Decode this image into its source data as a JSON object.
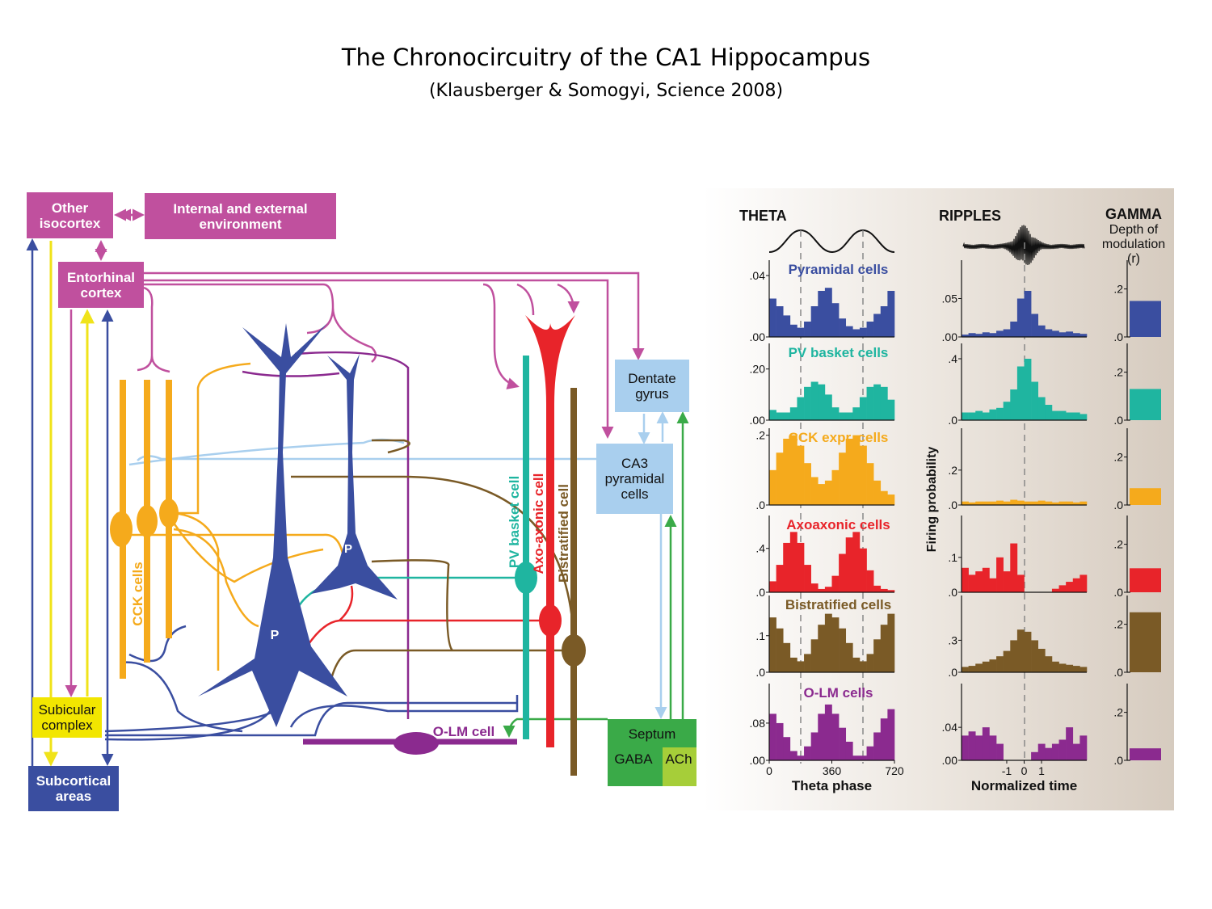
{
  "header": {
    "title": "The Chronocircuitry of the CA1 Hippocampus",
    "subtitle": "(Klausberger & Somogyi, Science 2008)"
  },
  "diagram": {
    "boxes": [
      "Other isocortex",
      "Internal and external environment",
      "Entorhinal cortex",
      "Dentate gyrus",
      "CA3 pyramidal cells",
      "Subicular complex",
      "Subcortical areas"
    ],
    "septum": {
      "label": "Septum",
      "gaba": "GABA",
      "ach": "ACh"
    },
    "cells": [
      "CCK cells",
      "PV basket cell",
      "Axo-axonic cell",
      "Bistratified cell",
      "O-LM cell",
      "P",
      "P"
    ]
  },
  "panel": {
    "theta": "THETA",
    "ripples": "RIPPLES",
    "gamma": "GAMMA",
    "gamma_sub": "Depth of modulation (r)",
    "y_label": "Firing probability"
  },
  "chart_data": [
    {
      "type": "histogram",
      "title": "Pyramidal cells",
      "color": "#3a4ea0",
      "bins": [
        0,
        40,
        80,
        120,
        160,
        200,
        240,
        280,
        320,
        360,
        400,
        440,
        480,
        520,
        560,
        600,
        640,
        680,
        720
      ],
      "values": [
        0.025,
        0.02,
        0.014,
        0.008,
        0.006,
        0.01,
        0.02,
        0.03,
        0.032,
        0.022,
        0.012,
        0.007,
        0.005,
        0.006,
        0.01,
        0.015,
        0.02,
        0.03
      ],
      "xlim": [
        0,
        720
      ],
      "ylim": [
        0,
        0.05
      ],
      "yticks": [
        {
          "value": 0,
          "label": ".00"
        },
        {
          "value": 0.04,
          "label": ".04"
        }
      ]
    },
    {
      "type": "histogram",
      "title": "PV basket cells",
      "color": "#1fb5a0",
      "bins": [
        0,
        40,
        80,
        120,
        160,
        200,
        240,
        280,
        320,
        360,
        400,
        440,
        480,
        520,
        560,
        600,
        640,
        680,
        720
      ],
      "values": [
        0.04,
        0.03,
        0.03,
        0.05,
        0.09,
        0.13,
        0.15,
        0.14,
        0.1,
        0.05,
        0.03,
        0.03,
        0.05,
        0.09,
        0.13,
        0.14,
        0.13,
        0.08
      ],
      "xlim": [
        0,
        720
      ],
      "ylim": [
        0,
        0.3
      ],
      "yticks": [
        {
          "value": 0,
          "label": ".00"
        },
        {
          "value": 0.2,
          "label": ".20"
        }
      ]
    },
    {
      "type": "histogram",
      "title": "CCK expr. cells",
      "color": "#f5aa1c",
      "bins": [
        0,
        40,
        80,
        120,
        160,
        200,
        240,
        280,
        320,
        360,
        400,
        440,
        480,
        520,
        560,
        600,
        640,
        680,
        720
      ],
      "values": [
        0.1,
        0.15,
        0.19,
        0.2,
        0.17,
        0.12,
        0.08,
        0.06,
        0.07,
        0.1,
        0.15,
        0.19,
        0.2,
        0.17,
        0.12,
        0.07,
        0.04,
        0.03
      ],
      "xlim": [
        0,
        720
      ],
      "ylim": [
        0,
        0.22
      ],
      "yticks": [
        {
          "value": 0,
          "label": ".0"
        },
        {
          "value": 0.2,
          "label": ".2"
        }
      ]
    },
    {
      "type": "histogram",
      "title": "Axoaxonic cells",
      "color": "#e8242a",
      "bins": [
        0,
        40,
        80,
        120,
        160,
        200,
        240,
        280,
        320,
        360,
        400,
        440,
        480,
        520,
        560,
        600,
        640,
        680,
        720
      ],
      "values": [
        0.1,
        0.25,
        0.45,
        0.55,
        0.45,
        0.25,
        0.08,
        0.03,
        0.05,
        0.15,
        0.35,
        0.5,
        0.55,
        0.4,
        0.2,
        0.06,
        0.03,
        0.02
      ],
      "xlim": [
        0,
        720
      ],
      "ylim": [
        0,
        0.7
      ],
      "yticks": [
        {
          "value": 0,
          "label": ".0"
        },
        {
          "value": 0.4,
          "label": ".4"
        }
      ]
    },
    {
      "type": "histogram",
      "title": "Bistratified cells",
      "color": "#7a5a26",
      "bins": [
        0,
        40,
        80,
        120,
        160,
        200,
        240,
        280,
        320,
        360,
        400,
        440,
        480,
        520,
        560,
        600,
        640,
        680,
        720
      ],
      "values": [
        0.15,
        0.12,
        0.08,
        0.04,
        0.03,
        0.05,
        0.09,
        0.13,
        0.16,
        0.15,
        0.12,
        0.08,
        0.04,
        0.03,
        0.05,
        0.09,
        0.13,
        0.16
      ],
      "xlim": [
        0,
        720
      ],
      "ylim": [
        0,
        0.21
      ],
      "yticks": [
        {
          "value": 0,
          "label": ".0"
        },
        {
          "value": 0.1,
          "label": ".1"
        }
      ]
    },
    {
      "type": "histogram",
      "title": "O-LM cells",
      "color": "#8b2a8f",
      "xlabel": "Theta phase",
      "bins": [
        0,
        40,
        80,
        120,
        160,
        200,
        240,
        280,
        320,
        360,
        400,
        440,
        480,
        520,
        560,
        600,
        640,
        680,
        720
      ],
      "values": [
        0.1,
        0.08,
        0.05,
        0.02,
        0.01,
        0.03,
        0.06,
        0.1,
        0.12,
        0.1,
        0.07,
        0.04,
        0.01,
        0.01,
        0.03,
        0.06,
        0.09,
        0.11
      ],
      "xlim": [
        0,
        720
      ],
      "ylim": [
        0,
        0.165
      ],
      "yticks": [
        {
          "value": 0,
          "label": ".00"
        },
        {
          "value": 0.08,
          "label": ".08"
        }
      ],
      "xticks": [
        0,
        360,
        720
      ]
    },
    {
      "type": "histogram",
      "color": "#3a4ea0",
      "bins": [
        -3.6,
        -3.2,
        -2.8,
        -2.4,
        -2,
        -1.6,
        -1.2,
        -0.8,
        -0.4,
        0,
        0.4,
        0.8,
        1.2,
        1.6,
        2,
        2.4,
        2.8,
        3.2,
        3.6
      ],
      "values": [
        0.003,
        0.005,
        0.004,
        0.006,
        0.005,
        0.008,
        0.01,
        0.02,
        0.05,
        0.06,
        0.03,
        0.015,
        0.01,
        0.008,
        0.006,
        0.007,
        0.005,
        0.004
      ],
      "xlim": [
        -3.6,
        3.6
      ],
      "ylim": [
        0,
        0.1
      ],
      "yticks": [
        {
          "value": 0,
          "label": ".00"
        },
        {
          "value": 0.05,
          "label": ".05"
        }
      ]
    },
    {
      "type": "histogram",
      "color": "#1fb5a0",
      "bins": [
        -3.6,
        -3.2,
        -2.8,
        -2.4,
        -2,
        -1.6,
        -1.2,
        -0.8,
        -0.4,
        0,
        0.4,
        0.8,
        1.2,
        1.6,
        2,
        2.4,
        2.8,
        3.2,
        3.6
      ],
      "values": [
        0.05,
        0.05,
        0.06,
        0.05,
        0.07,
        0.08,
        0.12,
        0.2,
        0.35,
        0.4,
        0.25,
        0.15,
        0.1,
        0.06,
        0.06,
        0.05,
        0.05,
        0.04
      ],
      "xlim": [
        -3.6,
        3.6
      ],
      "ylim": [
        0,
        0.5
      ],
      "yticks": [
        {
          "value": 0,
          "label": ".0"
        },
        {
          "value": 0.4,
          "label": ".4"
        }
      ]
    },
    {
      "type": "histogram",
      "color": "#f5aa1c",
      "bins": [
        -3.6,
        -3.2,
        -2.8,
        -2.4,
        -2,
        -1.6,
        -1.2,
        -0.8,
        -0.4,
        0,
        0.4,
        0.8,
        1.2,
        1.6,
        2,
        2.4,
        2.8,
        3.2,
        3.6
      ],
      "values": [
        0.02,
        0.015,
        0.02,
        0.02,
        0.02,
        0.025,
        0.02,
        0.03,
        0.025,
        0.02,
        0.02,
        0.025,
        0.02,
        0.015,
        0.02,
        0.02,
        0.015,
        0.02
      ],
      "xlim": [
        -3.6,
        3.6
      ],
      "ylim": [
        0,
        0.44
      ],
      "yticks": [
        {
          "value": 0,
          "label": ".0"
        },
        {
          "value": 0.2,
          "label": ".2"
        }
      ]
    },
    {
      "type": "histogram",
      "color": "#e8242a",
      "bins": [
        -3.6,
        -3.2,
        -2.8,
        -2.4,
        -2,
        -1.6,
        -1.2,
        -0.8,
        -0.4,
        0,
        0.4,
        0.8,
        1.2,
        1.6,
        2,
        2.4,
        2.8,
        3.2,
        3.6
      ],
      "values": [
        0.07,
        0.05,
        0.06,
        0.07,
        0.04,
        0.1,
        0.06,
        0.14,
        0.05,
        0,
        0,
        0,
        0,
        0.01,
        0.02,
        0.03,
        0.04,
        0.05
      ],
      "xlim": [
        -3.6,
        3.6
      ],
      "ylim": [
        0,
        0.22
      ],
      "yticks": [
        {
          "value": 0,
          "label": ".0"
        },
        {
          "value": 0.1,
          "label": ".1"
        }
      ]
    },
    {
      "type": "histogram",
      "color": "#7a5a26",
      "bins": [
        -3.6,
        -3.2,
        -2.8,
        -2.4,
        -2,
        -1.6,
        -1.2,
        -0.8,
        -0.4,
        0,
        0.4,
        0.8,
        1.2,
        1.6,
        2,
        2.4,
        2.8,
        3.2,
        3.6
      ],
      "values": [
        0.05,
        0.06,
        0.08,
        0.1,
        0.12,
        0.15,
        0.2,
        0.3,
        0.4,
        0.38,
        0.3,
        0.22,
        0.15,
        0.1,
        0.08,
        0.07,
        0.06,
        0.05
      ],
      "xlim": [
        -3.6,
        3.6
      ],
      "ylim": [
        0,
        0.72
      ],
      "yticks": [
        {
          "value": 0,
          "label": ".0"
        },
        {
          "value": 0.3,
          "label": ".3"
        }
      ]
    },
    {
      "type": "histogram",
      "color": "#8b2a8f",
      "xlabel": "Normalized time",
      "bins": [
        -3.6,
        -3.2,
        -2.8,
        -2.4,
        -2,
        -1.6,
        -1.2,
        -0.8,
        -0.4,
        0,
        0.4,
        0.8,
        1.2,
        1.6,
        2,
        2.4,
        2.8,
        3.2,
        3.6
      ],
      "values": [
        0.03,
        0.035,
        0.03,
        0.04,
        0.03,
        0.02,
        0,
        0,
        0,
        0,
        0.01,
        0.02,
        0.015,
        0.02,
        0.025,
        0.04,
        0.02,
        0.03
      ],
      "xlim": [
        -3.6,
        3.6
      ],
      "ylim": [
        0,
        0.093
      ],
      "yticks": [
        {
          "value": 0,
          "label": ".00"
        },
        {
          "value": 0.04,
          "label": ".04"
        }
      ],
      "xticks": [
        -1,
        0,
        1
      ]
    },
    {
      "type": "bar",
      "color": "#3a4ea0",
      "categories": [
        null
      ],
      "values": [
        0.15
      ],
      "ylim": [
        0,
        0.32
      ],
      "yticks": [
        {
          "value": 0,
          "label": ".0"
        },
        {
          "value": 0.2,
          "label": ".2"
        }
      ]
    },
    {
      "type": "bar",
      "color": "#1fb5a0",
      "categories": [
        null
      ],
      "values": [
        0.13
      ],
      "ylim": [
        0,
        0.32
      ],
      "yticks": [
        {
          "value": 0,
          "label": ".0"
        },
        {
          "value": 0.2,
          "label": ".2"
        }
      ]
    },
    {
      "type": "bar",
      "color": "#f5aa1c",
      "categories": [
        null
      ],
      "values": [
        0.07
      ],
      "ylim": [
        0,
        0.32
      ],
      "yticks": [
        {
          "value": 0,
          "label": ".0"
        },
        {
          "value": 0.2,
          "label": ".2"
        }
      ]
    },
    {
      "type": "bar",
      "color": "#e8242a",
      "categories": [
        null
      ],
      "values": [
        0.1
      ],
      "ylim": [
        0,
        0.32
      ],
      "yticks": [
        {
          "value": 0,
          "label": ".0"
        },
        {
          "value": 0.2,
          "label": ".2"
        }
      ]
    },
    {
      "type": "bar",
      "color": "#7a5a26",
      "categories": [
        null
      ],
      "values": [
        0.25
      ],
      "ylim": [
        0,
        0.32
      ],
      "yticks": [
        {
          "value": 0,
          "label": ".0"
        },
        {
          "value": 0.2,
          "label": ".2"
        }
      ]
    },
    {
      "type": "bar",
      "color": "#8b2a8f",
      "categories": [
        null
      ],
      "values": [
        0.05
      ],
      "ylim": [
        0,
        0.32
      ],
      "yticks": [
        {
          "value": 0,
          "label": ".0"
        },
        {
          "value": 0.2,
          "label": ".2"
        }
      ]
    }
  ]
}
